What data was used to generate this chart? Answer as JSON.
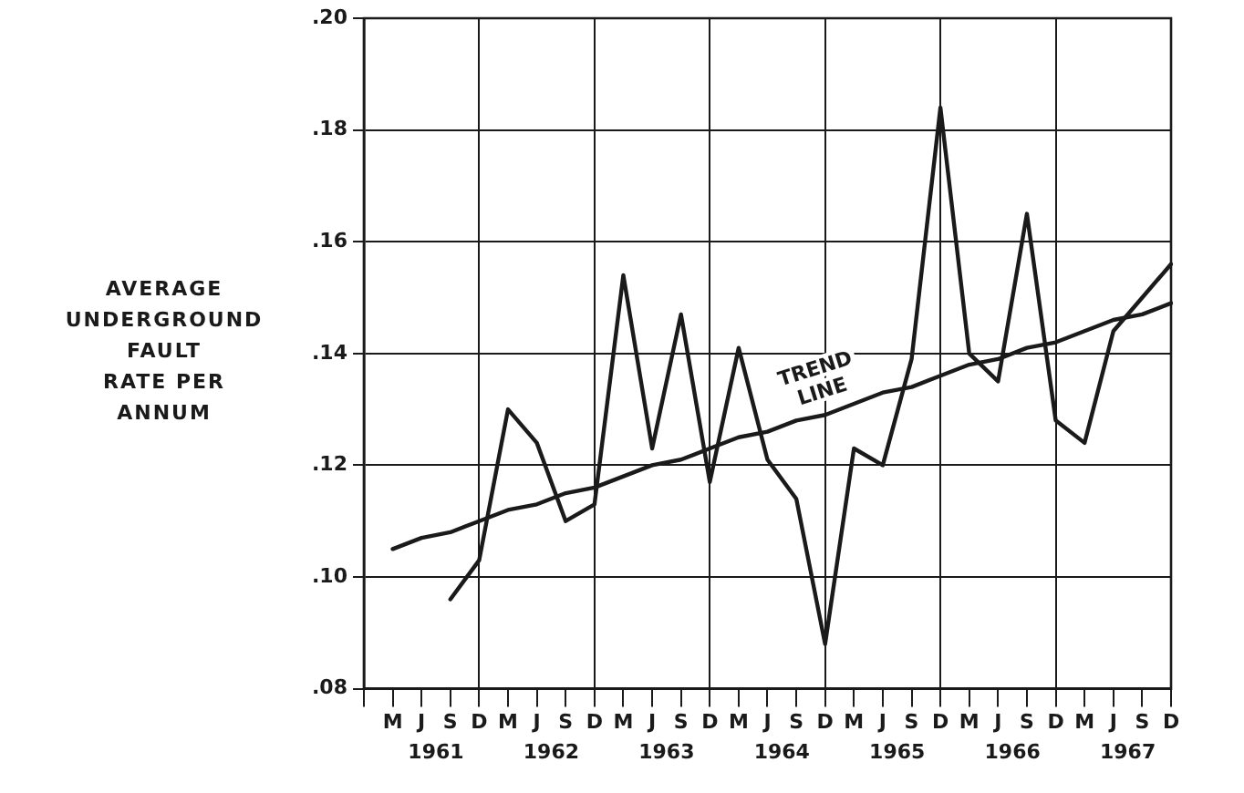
{
  "chart_data": {
    "type": "line",
    "ylabel": "AVERAGE\nUNDERGROUND\nFAULT\nRATE PER\nANNUM",
    "categories": [
      null,
      "M",
      "J",
      "S",
      "D",
      "M",
      "J",
      "S",
      "D",
      "M",
      "J",
      "S",
      "D",
      "M",
      "J",
      "S",
      "D",
      "M",
      "J",
      "S",
      "D",
      "M",
      "J",
      "S",
      "D",
      "M",
      "J",
      "S",
      "D"
    ],
    "series": [
      {
        "color": "#1a1a1a",
        "values": [
          null,
          null,
          null,
          0.096,
          0.103,
          0.13,
          0.124,
          0.11,
          0.113,
          0.154,
          0.123,
          0.147,
          0.117,
          0.141,
          0.121,
          0.114,
          0.088,
          0.123,
          0.12,
          0.139,
          0.184,
          0.14,
          0.135,
          0.165,
          0.128,
          0.124,
          0.144,
          0.15,
          0.156
        ]
      },
      {
        "name": "TREND LINE",
        "type": "line",
        "color": "#1a1a1a",
        "values": [
          null,
          0.105,
          0.107,
          0.108,
          0.11,
          0.112,
          0.113,
          0.115,
          0.116,
          0.118,
          0.12,
          0.121,
          0.123,
          0.125,
          0.126,
          0.128,
          0.129,
          0.131,
          0.133,
          0.134,
          0.136,
          0.138,
          0.139,
          0.141,
          0.142,
          0.144,
          0.146,
          0.147,
          0.149
        ]
      }
    ],
    "annotations": [
      "1961",
      "1962",
      "1963",
      "1964",
      "1965",
      "1966",
      "1967"
    ],
    "ylim": [
      0.08,
      0.2
    ],
    "yticks": [
      {
        "value": 0.08,
        "label": ".08"
      },
      {
        "value": 0.1,
        "label": ".10"
      },
      {
        "value": 0.12,
        "label": ".12"
      },
      {
        "value": 0.14,
        "label": ".14"
      },
      {
        "value": 0.16,
        "label": ".16"
      },
      {
        "value": 0.18,
        "label": ".18"
      },
      {
        "value": 0.2,
        "label": ".20"
      }
    ],
    "grid": true,
    "legend": false,
    "marker": "none",
    "line_style": "solid"
  }
}
